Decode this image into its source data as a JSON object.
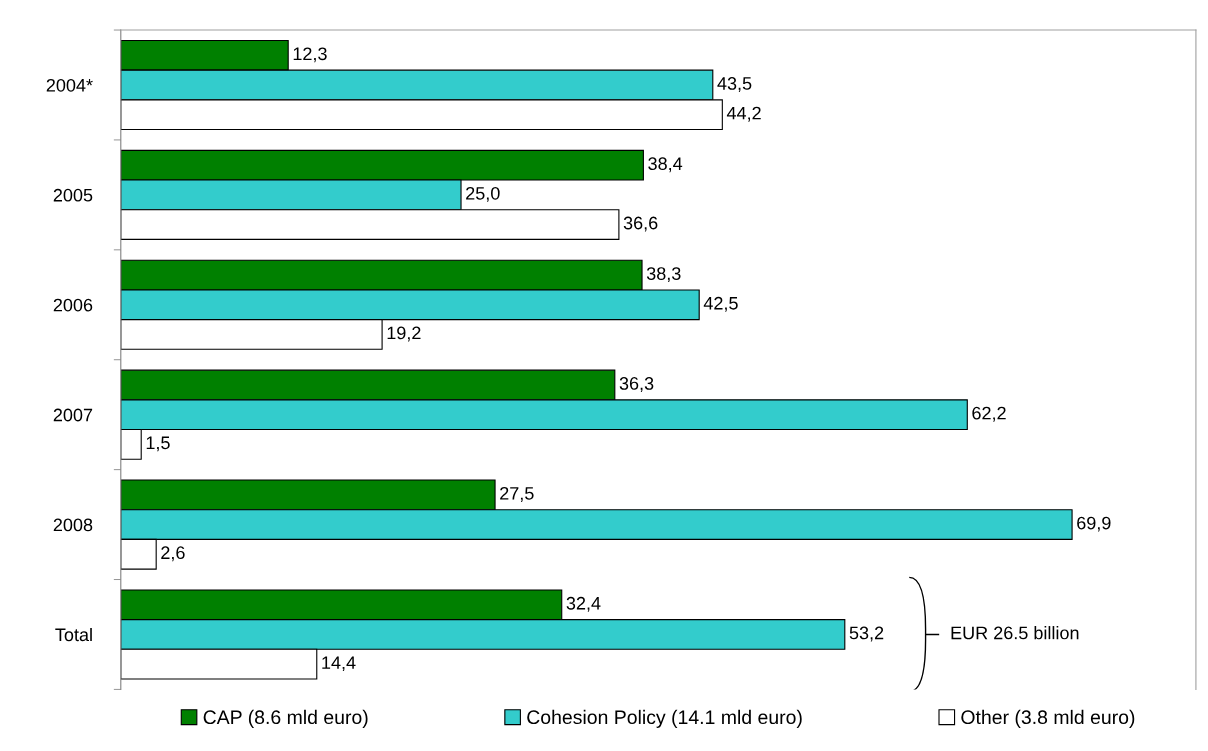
{
  "chart_data": {
    "type": "bar",
    "orientation": "horizontal",
    "categories": [
      "2004*",
      "2005",
      "2006",
      "2007",
      "2008",
      "Total"
    ],
    "series": [
      {
        "name": "CAP (8.6 mld euro)",
        "color": "#008000",
        "values": [
          12.3,
          38.4,
          38.3,
          36.3,
          27.5,
          32.4
        ],
        "value_labels": [
          "12,3",
          "38,4",
          "38,3",
          "36,3",
          "27,5",
          "32,4"
        ]
      },
      {
        "name": "Cohesion Policy (14.1 mld euro)",
        "color": "#33cccc",
        "values": [
          43.5,
          25.0,
          42.5,
          62.2,
          69.9,
          53.2
        ],
        "value_labels": [
          "43,5",
          "25,0",
          "42,5",
          "62,2",
          "69,9",
          "53,2"
        ]
      },
      {
        "name": "Other (3.8 mld euro)",
        "color": "#ffffff",
        "values": [
          44.2,
          36.6,
          19.2,
          1.5,
          2.6,
          14.4
        ],
        "value_labels": [
          "44,2",
          "36,6",
          "19,2",
          "1,5",
          "2,6",
          "14,4"
        ]
      }
    ],
    "xlim": [
      0,
      79
    ],
    "tick_labels": "y",
    "grid": false,
    "legend": "bottom",
    "annotations": [
      "EUR 26.5 billion"
    ]
  }
}
